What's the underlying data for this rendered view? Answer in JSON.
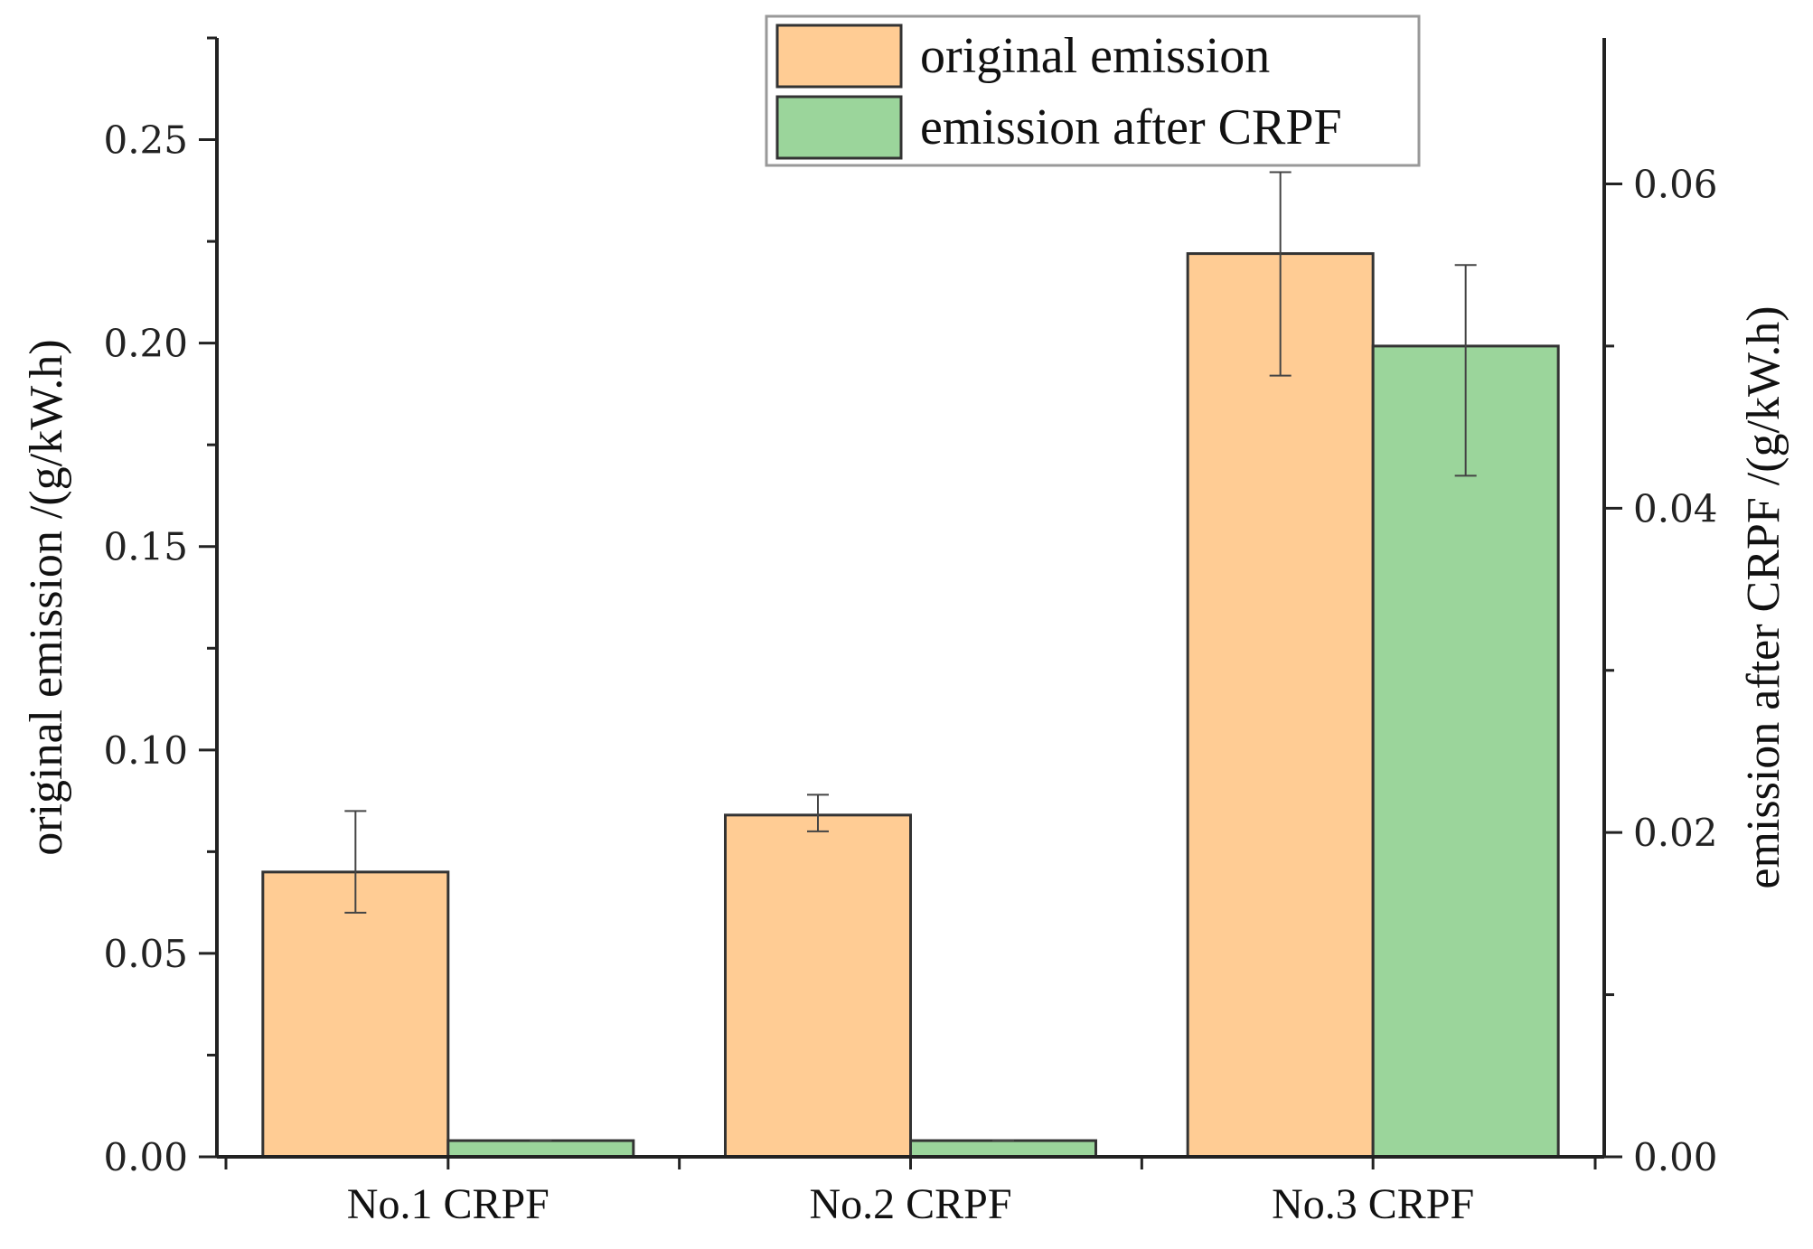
{
  "chart_data": {
    "type": "bar",
    "categories": [
      "No.1 CRPF",
      "No.2 CRPF",
      "No.3 CRPF"
    ],
    "series": [
      {
        "name": "original emission",
        "axis": "left",
        "color": "#FFCC94",
        "values": [
          0.07,
          0.084,
          0.222
        ],
        "errors": [
          [
            0.06,
            0.085
          ],
          [
            0.08,
            0.089
          ],
          [
            0.192,
            0.242
          ]
        ]
      },
      {
        "name": "emission after CRPF",
        "axis": "right",
        "color": "#9BD59B",
        "values": [
          0.001,
          0.001,
          0.05
        ],
        "errors": [
          [
            0.001,
            0.001
          ],
          [
            0.001,
            0.001
          ],
          [
            0.042,
            0.055
          ]
        ]
      }
    ],
    "ylabel": "original emission /(g/kW.h)",
    "y2label": "emission after CRPF /(g/kW.h)",
    "ylim": [
      0,
      0.275
    ],
    "y2lim": [
      0,
      0.069
    ],
    "yticks": [
      "0.00",
      "0.05",
      "0.10",
      "0.15",
      "0.20",
      "0.25"
    ],
    "yticks_values": [
      0,
      0.05,
      0.1,
      0.15,
      0.2,
      0.25
    ],
    "y2ticks": [
      "0.00",
      "0.02",
      "0.04",
      "0.06"
    ],
    "y2ticks_values": [
      0,
      0.02,
      0.04,
      0.06
    ],
    "legend_position": "top-center",
    "grid": false
  }
}
